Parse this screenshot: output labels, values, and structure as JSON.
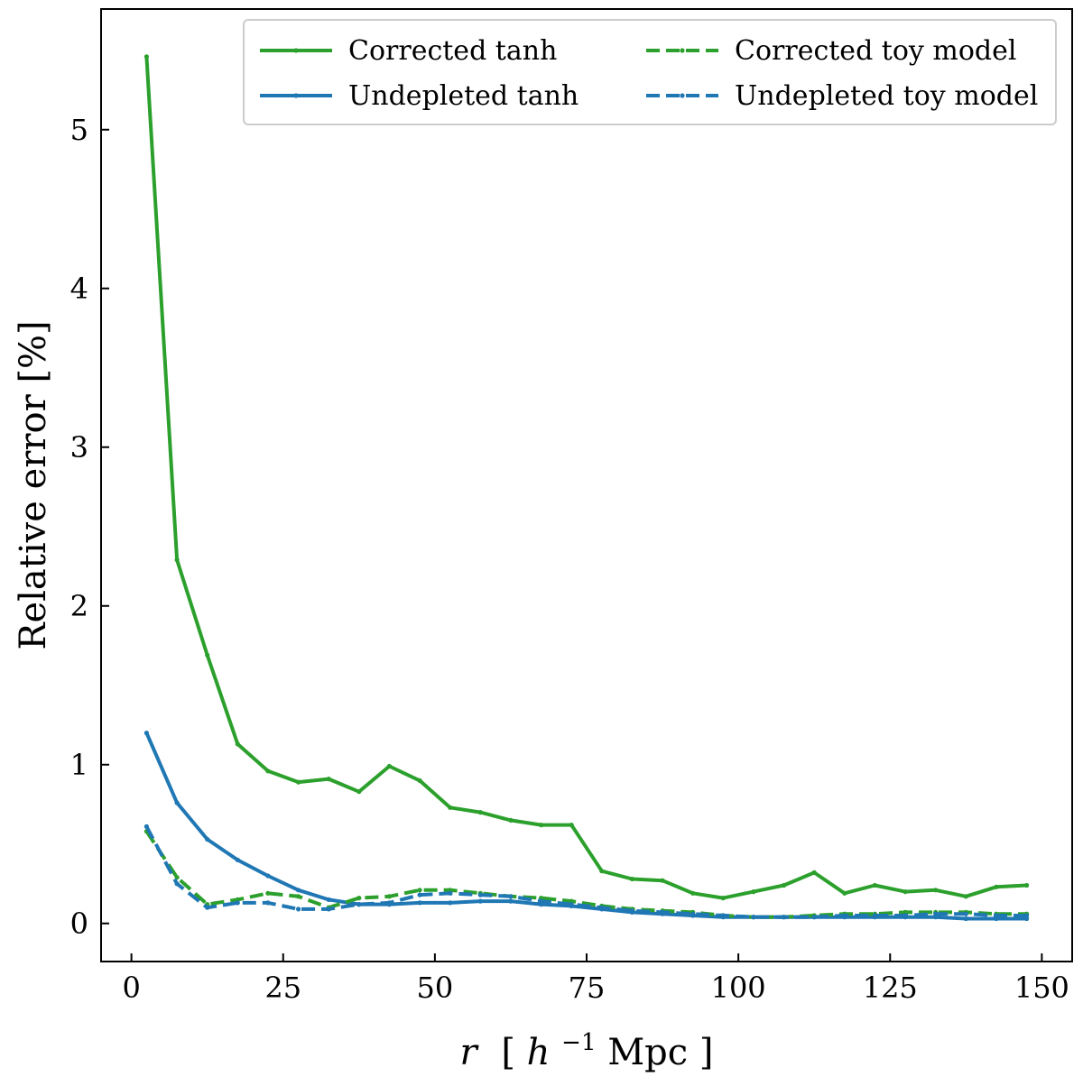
{
  "chart_data": {
    "type": "line",
    "title": "",
    "xlabel": {
      "prefix": "r",
      "bracket_open": "[",
      "h": "h",
      "exp": "−1",
      "unit": "Mpc",
      "bracket_close": "]"
    },
    "ylabel": "Relative error [%]",
    "xlim": [
      -5,
      155
    ],
    "ylim": [
      -0.24,
      5.76
    ],
    "xticks": [
      0,
      25,
      50,
      75,
      100,
      125,
      150
    ],
    "yticks": [
      0,
      1,
      2,
      3,
      4,
      5
    ],
    "grid": false,
    "legend_position": "top-right",
    "legend_columns": 2,
    "x": [
      2.5,
      7.5,
      12.5,
      17.5,
      22.5,
      27.5,
      32.5,
      37.5,
      42.5,
      47.5,
      52.5,
      57.5,
      62.5,
      67.5,
      72.5,
      77.5,
      82.5,
      87.5,
      92.5,
      97.5,
      102.5,
      107.5,
      112.5,
      117.5,
      122.5,
      127.5,
      132.5,
      137.5,
      142.5,
      147.5
    ],
    "series": [
      {
        "name": "Corrected tanh",
        "color": "#2ca02c",
        "dash": "solid",
        "values": [
          5.46,
          2.29,
          1.69,
          1.13,
          0.96,
          0.89,
          0.91,
          0.83,
          0.99,
          0.9,
          0.73,
          0.7,
          0.65,
          0.62,
          0.62,
          0.33,
          0.28,
          0.27,
          0.19,
          0.16,
          0.2,
          0.24,
          0.32,
          0.19,
          0.24,
          0.2,
          0.21,
          0.17,
          0.23,
          0.24
        ]
      },
      {
        "name": "Undepleted tanh",
        "color": "#1f77b4",
        "dash": "solid",
        "values": [
          1.2,
          0.76,
          0.53,
          0.4,
          0.3,
          0.21,
          0.15,
          0.12,
          0.12,
          0.13,
          0.13,
          0.14,
          0.14,
          0.12,
          0.11,
          0.09,
          0.07,
          0.06,
          0.05,
          0.04,
          0.04,
          0.04,
          0.04,
          0.04,
          0.04,
          0.04,
          0.04,
          0.03,
          0.03,
          0.03
        ]
      },
      {
        "name": "Corrected toy model",
        "color": "#2ca02c",
        "dash": "dashed",
        "values": [
          0.58,
          0.29,
          0.12,
          0.15,
          0.19,
          0.17,
          0.1,
          0.16,
          0.17,
          0.21,
          0.21,
          0.19,
          0.17,
          0.16,
          0.14,
          0.11,
          0.09,
          0.08,
          0.07,
          0.05,
          0.04,
          0.04,
          0.05,
          0.06,
          0.06,
          0.07,
          0.07,
          0.07,
          0.06,
          0.06
        ]
      },
      {
        "name": "Undepleted toy model",
        "color": "#1f77b4",
        "dash": "dashed",
        "values": [
          0.61,
          0.25,
          0.1,
          0.13,
          0.13,
          0.09,
          0.09,
          0.12,
          0.13,
          0.18,
          0.19,
          0.18,
          0.17,
          0.14,
          0.12,
          0.1,
          0.08,
          0.07,
          0.06,
          0.05,
          0.04,
          0.04,
          0.04,
          0.05,
          0.05,
          0.05,
          0.06,
          0.06,
          0.05,
          0.05
        ]
      }
    ]
  }
}
